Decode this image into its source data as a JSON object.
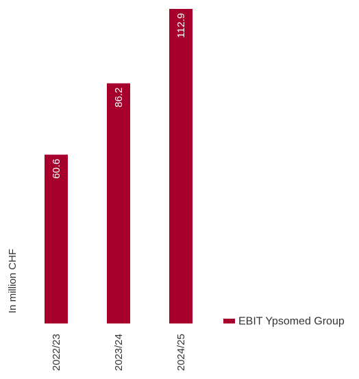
{
  "chart_data": {
    "type": "bar",
    "categories": [
      "2022/23",
      "2023/24",
      "2024/25"
    ],
    "series": [
      {
        "name": "EBIT Ypsomed Group",
        "values": [
          60.6,
          86.2,
          112.9
        ],
        "labels": [
          "60.6",
          "86.2",
          "112.9"
        ],
        "color": "#a6002c"
      }
    ],
    "ylabel": "In million CHF",
    "legend_position": "right",
    "grid": false
  }
}
